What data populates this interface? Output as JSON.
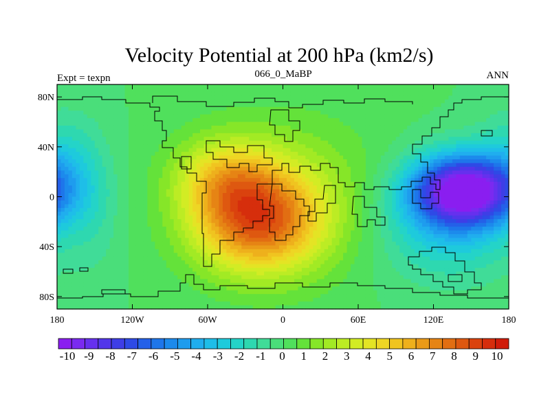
{
  "chart_data": {
    "type": "heatmap",
    "title": "Velocity Potential at 200 hPa (km2/s)",
    "left_label": "Expt = texpn",
    "center_label": "066_0_MaBP",
    "right_label": "ANN",
    "x_range": [
      -180,
      180
    ],
    "y_range": [
      -90,
      90
    ],
    "x_ticks": [
      {
        "value": -180,
        "label": "180"
      },
      {
        "value": -120,
        "label": "120W"
      },
      {
        "value": -60,
        "label": "60W"
      },
      {
        "value": 0,
        "label": "0"
      },
      {
        "value": 60,
        "label": "60E"
      },
      {
        "value": 120,
        "label": "120E"
      },
      {
        "value": 180,
        "label": "180"
      }
    ],
    "y_ticks": [
      {
        "value": 80,
        "label": "80N"
      },
      {
        "value": 40,
        "label": "40N"
      },
      {
        "value": 0,
        "label": "0"
      },
      {
        "value": -40,
        "label": "40S"
      },
      {
        "value": -80,
        "label": "80S"
      }
    ],
    "colorbar": {
      "labels": [
        "-10",
        "-9",
        "-8",
        "-7",
        "-6",
        "-5",
        "-4",
        "-3",
        "-2",
        "-1",
        "0",
        "1",
        "2",
        "3",
        "4",
        "5",
        "6",
        "7",
        "8",
        "9",
        "10"
      ],
      "colors": [
        "#8a1ef0",
        "#7a2af0",
        "#6630ee",
        "#5236ea",
        "#3e3ee6",
        "#2e4ae6",
        "#2460e8",
        "#1e76ea",
        "#1c8aec",
        "#1e9cee",
        "#20aeee",
        "#1ebee8",
        "#1ecadc",
        "#24d4c8",
        "#2ed8b0",
        "#40dc98",
        "#4ade7a",
        "#50e05c",
        "#64e23a",
        "#86e628",
        "#a2ea24",
        "#bcec24",
        "#d2ec24",
        "#e4e424",
        "#eed624",
        "#f0c420",
        "#eeb01c",
        "#ea9a18",
        "#e68414",
        "#e26e12",
        "#de5810",
        "#da420e",
        "#d62e0c",
        "#d01c0a"
      ],
      "min": -10,
      "max": 10
    },
    "field_centers": [
      {
        "lon": 145,
        "lat": 5,
        "amp": -10.2,
        "sx": 30,
        "sy": 20
      },
      {
        "lon": 130,
        "lat": -25,
        "amp": -2.5,
        "sx": 40,
        "sy": 30
      },
      {
        "lon": -20,
        "lat": -20,
        "amp": 6.6,
        "sx": 35,
        "sy": 28
      },
      {
        "lon": -45,
        "lat": 15,
        "amp": 3.2,
        "sx": 28,
        "sy": 22
      },
      {
        "lon": 0,
        "lat": 0,
        "amp": 2.0,
        "sx": 55,
        "sy": 45
      },
      {
        "lon": -175,
        "lat": 35,
        "amp": -1.5,
        "sx": 20,
        "sy": 25
      },
      {
        "lon": -150,
        "lat": -10,
        "amp": -0.8,
        "sx": 15,
        "sy": 40
      }
    ]
  }
}
